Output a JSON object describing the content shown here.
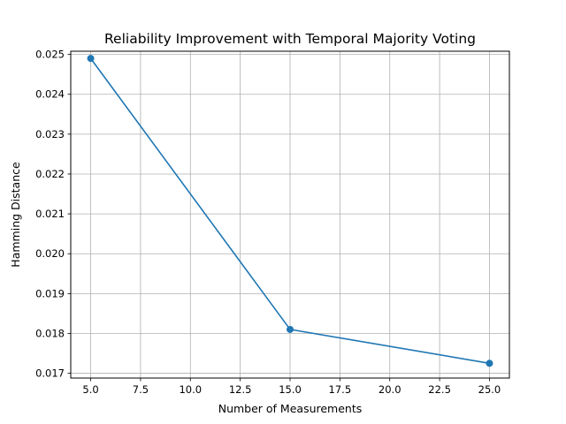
{
  "chart_data": {
    "type": "line",
    "title": "Reliability Improvement with Temporal Majority Voting",
    "xlabel": "Number of Measurements",
    "ylabel": "Hamming Distance",
    "xlim": [
      4.0,
      26.0
    ],
    "ylim": [
      0.01688,
      0.02508
    ],
    "xticks": [
      5.0,
      7.5,
      10.0,
      12.5,
      15.0,
      17.5,
      20.0,
      22.5,
      25.0
    ],
    "xtick_labels": [
      "5.0",
      "7.5",
      "10.0",
      "12.5",
      "15.0",
      "17.5",
      "20.0",
      "22.5",
      "25.0"
    ],
    "yticks": [
      0.017,
      0.018,
      0.019,
      0.02,
      0.021,
      0.022,
      0.023,
      0.024,
      0.025
    ],
    "ytick_labels": [
      "0.017",
      "0.018",
      "0.019",
      "0.020",
      "0.021",
      "0.022",
      "0.023",
      "0.024",
      "0.025"
    ],
    "grid": true,
    "series": [
      {
        "x": [
          5,
          15,
          25
        ],
        "y": [
          0.0249,
          0.0181,
          0.01725
        ],
        "color": "#1f77b4",
        "marker": "circle"
      }
    ]
  }
}
